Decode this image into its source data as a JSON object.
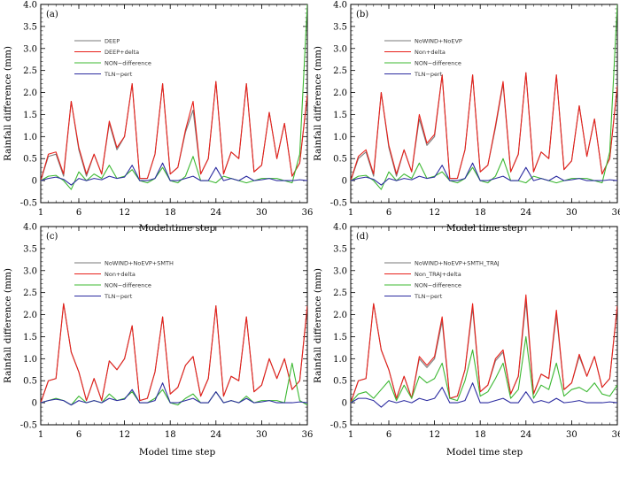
{
  "chart_data": [
    {
      "type": "line",
      "panel_label": "(a)",
      "ylabel": "Rainfall difference (mm)",
      "xlabel": "Model time step",
      "ylim": [
        -0.5,
        4.0
      ],
      "yticks": [
        "-0.5",
        "0",
        "0.5",
        "1.0",
        "1.5",
        "2.0",
        "2.5",
        "3.0",
        "3.5",
        "4.0"
      ],
      "xticks": [
        "1",
        "6",
        "12",
        "18",
        "24",
        "30",
        "36"
      ],
      "legend_position": "top-left",
      "x": [
        1,
        2,
        3,
        4,
        5,
        6,
        7,
        8,
        9,
        10,
        11,
        12,
        13,
        14,
        15,
        16,
        17,
        18,
        19,
        20,
        21,
        22,
        23,
        24,
        25,
        26,
        27,
        28,
        29,
        30,
        31,
        32,
        33,
        34,
        35,
        36
      ],
      "series": [
        {
          "name": "DEEP",
          "color": "#7a7a7a",
          "values": [
            0,
            0.55,
            0.6,
            0.1,
            1.8,
            0.7,
            0.1,
            0.6,
            0.15,
            1.3,
            0.7,
            1.0,
            2.2,
            0.05,
            0.05,
            0.6,
            2.2,
            0.15,
            0.3,
            1.1,
            1.6,
            0.15,
            0.5,
            2.25,
            0.15,
            0.65,
            0.5,
            2.2,
            0.2,
            0.35,
            1.55,
            0.5,
            1.3,
            0.1,
            0.4,
            1.95
          ]
        },
        {
          "name": "DEEP+delta",
          "color": "#e8201a",
          "values": [
            0,
            0.6,
            0.65,
            0.15,
            1.8,
            0.75,
            0.15,
            0.6,
            0.15,
            1.35,
            0.75,
            1.0,
            2.2,
            0.05,
            0.05,
            0.6,
            2.2,
            0.15,
            0.3,
            1.15,
            1.8,
            0.15,
            0.5,
            2.25,
            0.15,
            0.65,
            0.5,
            2.2,
            0.2,
            0.35,
            1.55,
            0.5,
            1.3,
            0.1,
            0.4,
            1.95
          ]
        },
        {
          "name": "NON−difference",
          "color": "#3cb832",
          "values": [
            0,
            0.1,
            0.12,
            0.0,
            -0.2,
            0.2,
            0.0,
            0.15,
            0.05,
            0.35,
            0.05,
            0.1,
            0.25,
            0.0,
            -0.05,
            0.05,
            0.3,
            0.0,
            -0.05,
            0.1,
            0.55,
            0.0,
            0.0,
            -0.05,
            0.1,
            0.05,
            0.0,
            -0.05,
            0.0,
            0.05,
            0.05,
            0.05,
            0.0,
            -0.05,
            0.6,
            4.0
          ]
        },
        {
          "name": "TLN−pert",
          "color": "#2b2ba0",
          "values": [
            0,
            0.05,
            0.08,
            0.03,
            -0.1,
            0.05,
            0.0,
            0.05,
            0.02,
            0.1,
            0.05,
            0.08,
            0.35,
            0.0,
            0.0,
            0.05,
            0.4,
            0.0,
            0.0,
            0.05,
            0.1,
            0.0,
            0.0,
            0.3,
            0.0,
            0.05,
            0.0,
            0.1,
            0.0,
            0.02,
            0.05,
            0.0,
            0.0,
            0.0,
            0.02,
            0.0
          ]
        }
      ]
    },
    {
      "type": "line",
      "panel_label": "(b)",
      "ylabel": "Rainfall difference (mm)",
      "xlabel": "Model time step",
      "ylim": [
        -0.5,
        4.0
      ],
      "yticks": [
        "-0.5",
        "0",
        "0.5",
        "1.0",
        "1.5",
        "2.0",
        "2.5",
        "3.0",
        "3.5",
        "4.0"
      ],
      "xticks": [
        "1",
        "6",
        "12",
        "18",
        "24",
        "30",
        "36"
      ],
      "legend_position": "top-left",
      "x": [
        1,
        2,
        3,
        4,
        5,
        6,
        7,
        8,
        9,
        10,
        11,
        12,
        13,
        14,
        15,
        16,
        17,
        18,
        19,
        20,
        21,
        22,
        23,
        24,
        25,
        26,
        27,
        28,
        29,
        30,
        31,
        32,
        33,
        34,
        35,
        36
      ],
      "series": [
        {
          "name": "NoWIND+NoEVP",
          "color": "#7a7a7a",
          "values": [
            0,
            0.5,
            0.65,
            0.1,
            2.0,
            0.75,
            0.1,
            0.7,
            0.2,
            1.4,
            0.8,
            1.0,
            2.4,
            0.05,
            0.05,
            0.7,
            2.4,
            0.2,
            0.35,
            1.2,
            2.2,
            0.2,
            0.6,
            2.45,
            0.2,
            0.65,
            0.5,
            2.4,
            0.25,
            0.45,
            1.7,
            0.55,
            1.4,
            0.15,
            0.5,
            2.15
          ]
        },
        {
          "name": "Non+delta",
          "color": "#e8201a",
          "values": [
            0,
            0.55,
            0.7,
            0.15,
            2.0,
            0.8,
            0.15,
            0.7,
            0.2,
            1.5,
            0.85,
            1.05,
            2.4,
            0.05,
            0.05,
            0.7,
            2.4,
            0.2,
            0.35,
            1.25,
            2.25,
            0.2,
            0.6,
            2.45,
            0.2,
            0.65,
            0.5,
            2.4,
            0.25,
            0.45,
            1.7,
            0.55,
            1.4,
            0.15,
            0.5,
            2.15
          ]
        },
        {
          "name": "NON−difference",
          "color": "#3cb832",
          "values": [
            0,
            0.1,
            0.12,
            0.0,
            -0.2,
            0.2,
            0.0,
            0.15,
            0.05,
            0.4,
            0.05,
            0.1,
            0.2,
            0.0,
            -0.05,
            0.05,
            0.3,
            0.0,
            -0.05,
            0.1,
            0.5,
            0.0,
            0.0,
            -0.05,
            0.1,
            0.05,
            0.0,
            -0.05,
            0.0,
            0.05,
            0.05,
            0.05,
            0.0,
            -0.05,
            0.65,
            4.0
          ]
        },
        {
          "name": "TLN−pert",
          "color": "#2b2ba0",
          "values": [
            0,
            0.05,
            0.08,
            0.03,
            -0.1,
            0.05,
            0.0,
            0.05,
            0.02,
            0.1,
            0.05,
            0.08,
            0.35,
            0.0,
            0.0,
            0.05,
            0.4,
            0.0,
            0.0,
            0.05,
            0.1,
            0.0,
            0.0,
            0.3,
            0.0,
            0.05,
            0.0,
            0.1,
            0.0,
            0.02,
            0.05,
            0.0,
            0.0,
            0.0,
            0.02,
            0.0
          ]
        }
      ]
    },
    {
      "type": "line",
      "panel_label": "(c)",
      "ylabel": "Rainfall difference (mm)",
      "xlabel": "Model time step",
      "ylim": [
        -0.5,
        4.0
      ],
      "yticks": [
        "-0.5",
        "0",
        "0.5",
        "1.0",
        "1.5",
        "2.0",
        "2.5",
        "3.0",
        "3.5",
        "4.0"
      ],
      "xticks": [
        "1",
        "6",
        "12",
        "18",
        "24",
        "30",
        "36"
      ],
      "legend_position": "top-left",
      "x": [
        1,
        2,
        3,
        4,
        5,
        6,
        7,
        8,
        9,
        10,
        11,
        12,
        13,
        14,
        15,
        16,
        17,
        18,
        19,
        20,
        21,
        22,
        23,
        24,
        25,
        26,
        27,
        28,
        29,
        30,
        31,
        32,
        33,
        34,
        35,
        36
      ],
      "series": [
        {
          "name": "NoWIND+NoEVP+SMTH",
          "color": "#7a7a7a",
          "values": [
            0,
            0.5,
            0.55,
            2.25,
            1.15,
            0.7,
            0.05,
            0.55,
            0.05,
            0.95,
            0.75,
            1.0,
            1.75,
            0.05,
            0.1,
            0.7,
            1.95,
            0.2,
            0.35,
            0.85,
            1.05,
            0.15,
            0.55,
            2.2,
            0.15,
            0.6,
            0.5,
            1.95,
            0.25,
            0.4,
            1.0,
            0.55,
            1.0,
            0.3,
            0.5,
            2.2
          ]
        },
        {
          "name": "Non+delta",
          "color": "#e8201a",
          "values": [
            0,
            0.5,
            0.55,
            2.25,
            1.15,
            0.7,
            0.05,
            0.55,
            0.05,
            0.95,
            0.75,
            1.0,
            1.75,
            0.05,
            0.1,
            0.7,
            1.95,
            0.2,
            0.35,
            0.85,
            1.05,
            0.15,
            0.55,
            2.2,
            0.15,
            0.6,
            0.5,
            1.95,
            0.25,
            0.4,
            1.0,
            0.55,
            1.0,
            0.3,
            0.5,
            2.2
          ]
        },
        {
          "name": "NON−difference",
          "color": "#3cb832",
          "values": [
            0,
            0.05,
            0.1,
            0.05,
            -0.05,
            0.15,
            0.0,
            0.05,
            0.0,
            0.2,
            0.05,
            0.1,
            0.25,
            0.0,
            0.0,
            0.1,
            0.3,
            0.0,
            -0.05,
            0.1,
            0.2,
            0.0,
            0.0,
            0.25,
            0.0,
            0.05,
            0.0,
            0.15,
            0.0,
            0.05,
            0.05,
            0.05,
            0.0,
            0.9,
            0.05,
            -0.05
          ]
        },
        {
          "name": "TLN−pert",
          "color": "#2b2ba0",
          "values": [
            0,
            0.05,
            0.08,
            0.05,
            -0.05,
            0.05,
            0.0,
            0.05,
            0.0,
            0.1,
            0.05,
            0.08,
            0.3,
            0.0,
            0.0,
            0.05,
            0.45,
            0.0,
            0.0,
            0.05,
            0.1,
            0.0,
            0.0,
            0.25,
            0.0,
            0.05,
            0.0,
            0.1,
            0.0,
            0.02,
            0.05,
            0.0,
            0.0,
            0.0,
            0.02,
            0.0
          ]
        }
      ]
    },
    {
      "type": "line",
      "panel_label": "(d)",
      "ylabel": "Rainfall difference (mm)",
      "xlabel": "Model time step",
      "ylim": [
        -0.5,
        4.0
      ],
      "yticks": [
        "-0.5",
        "0",
        "0.5",
        "1.0",
        "1.5",
        "2.0",
        "2.5",
        "3.0",
        "3.5",
        "4.0"
      ],
      "xticks": [
        "1",
        "6",
        "12",
        "18",
        "24",
        "30",
        "36"
      ],
      "legend_position": "top-left",
      "x": [
        1,
        2,
        3,
        4,
        5,
        6,
        7,
        8,
        9,
        10,
        11,
        12,
        13,
        14,
        15,
        16,
        17,
        18,
        19,
        20,
        21,
        22,
        23,
        24,
        25,
        26,
        27,
        28,
        29,
        30,
        31,
        32,
        33,
        34,
        35,
        36
      ],
      "series": [
        {
          "name": "NoWIND+NoEVP+SMTH_TRAJ",
          "color": "#7a7a7a",
          "values": [
            0,
            0.5,
            0.55,
            2.25,
            1.2,
            0.75,
            0.1,
            0.6,
            0.1,
            1.0,
            0.8,
            1.0,
            1.85,
            0.1,
            0.15,
            0.75,
            2.15,
            0.25,
            0.4,
            0.95,
            1.15,
            0.2,
            0.6,
            2.3,
            0.2,
            0.65,
            0.55,
            2.0,
            0.3,
            0.45,
            1.05,
            0.6,
            1.05,
            0.35,
            0.55,
            2.2
          ]
        },
        {
          "name": "Non_TRAJ+delta",
          "color": "#e8201a",
          "values": [
            0,
            0.5,
            0.55,
            2.25,
            1.2,
            0.75,
            0.1,
            0.6,
            0.1,
            1.05,
            0.85,
            1.05,
            1.95,
            0.1,
            0.15,
            0.75,
            2.25,
            0.25,
            0.4,
            1.0,
            1.2,
            0.2,
            0.6,
            2.45,
            0.2,
            0.65,
            0.55,
            2.1,
            0.3,
            0.45,
            1.1,
            0.6,
            1.05,
            0.35,
            0.55,
            2.2
          ]
        },
        {
          "name": "NON−difference",
          "color": "#3cb832",
          "values": [
            0,
            0.2,
            0.25,
            0.1,
            0.3,
            0.5,
            0.05,
            0.4,
            0.1,
            0.6,
            0.45,
            0.55,
            0.9,
            0.1,
            0.05,
            0.5,
            1.2,
            0.15,
            0.25,
            0.55,
            0.9,
            0.1,
            0.3,
            1.5,
            0.1,
            0.4,
            0.3,
            0.9,
            0.15,
            0.3,
            0.35,
            0.25,
            0.45,
            0.2,
            0.15,
            0.4
          ]
        },
        {
          "name": "TLN−pert",
          "color": "#2b2ba0",
          "values": [
            0,
            0.1,
            0.1,
            0.05,
            -0.1,
            0.05,
            0.0,
            0.05,
            0.0,
            0.1,
            0.05,
            0.1,
            0.35,
            0.0,
            0.0,
            0.05,
            0.45,
            0.0,
            0.0,
            0.05,
            0.1,
            0.0,
            0.0,
            0.25,
            0.0,
            0.05,
            0.0,
            0.1,
            0.0,
            0.02,
            0.05,
            0.0,
            0.0,
            0.0,
            0.02,
            0.0
          ]
        }
      ]
    }
  ]
}
